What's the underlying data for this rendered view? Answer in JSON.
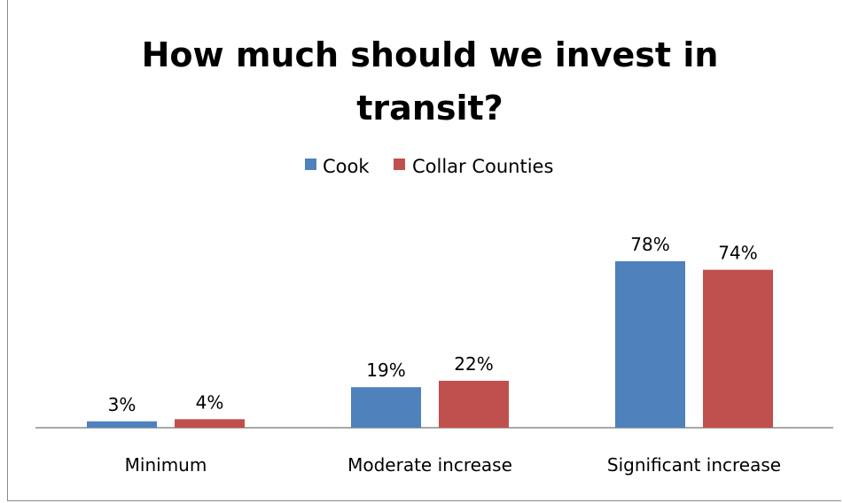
{
  "chart_data": {
    "type": "bar",
    "title_lines": [
      "How much should we invest in",
      "transit?"
    ],
    "categories": [
      "Minimum",
      "Moderate increase",
      "Significant increase"
    ],
    "series": [
      {
        "name": "Cook",
        "color": "#4f81bd",
        "values": [
          3,
          19,
          78
        ],
        "labels": [
          "3%",
          "19%",
          "78%"
        ]
      },
      {
        "name": "Collar Counties",
        "color": "#c0504d",
        "values": [
          4,
          22,
          74
        ],
        "labels": [
          "4%",
          "22%",
          "74%"
        ]
      }
    ],
    "ylim": [
      0,
      100
    ],
    "grid": false,
    "legend_position": "top"
  }
}
